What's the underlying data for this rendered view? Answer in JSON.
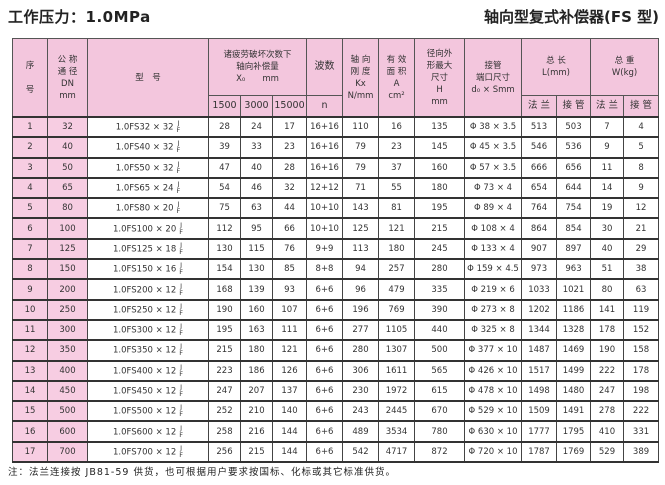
{
  "title_left": "工作压力：1.0MPa",
  "title_right": "轴向型复式补偿器(FS 型)",
  "header": {
    "seq": "序\n\n号",
    "dn": "公 称\n通 径\nDN\nmm",
    "model": "型　号",
    "comp": "诸疲劳破坏次数下\n轴向补偿量\nX₀　　mm",
    "comp_sub": [
      "1500",
      "3000",
      "15000"
    ],
    "waves": "波数",
    "waves_sub": "n",
    "stiff": "轴 向\n刚 度\nKx\nN/mm",
    "area": "有 效\n面 积\nA\ncm²",
    "outer": "径向外\n形最大\n尺寸\nH\nmm",
    "pipe": "接管\n端口尺寸\nd₀ × Smm",
    "length": "总 长\nL(mm)",
    "length_sub": [
      "法 兰",
      "接 管"
    ],
    "weight": "总 重\nW(kg)",
    "weight_sub": [
      "法 兰",
      "接 管"
    ]
  },
  "frac": {
    "top": "J",
    "bottom": "F"
  },
  "rows": [
    [
      "1",
      "32",
      "1.0FS32 × 32",
      "28",
      "24",
      "17",
      "16+16",
      "110",
      "16",
      "135",
      "Φ 38 × 3.5",
      "513",
      "503",
      "7",
      "4"
    ],
    [
      "2",
      "40",
      "1.0FS40 × 32",
      "39",
      "33",
      "23",
      "16+16",
      "79",
      "23",
      "145",
      "Φ 45 × 3.5",
      "546",
      "536",
      "9",
      "5"
    ],
    [
      "3",
      "50",
      "1.0FS50 × 32",
      "47",
      "40",
      "28",
      "16+16",
      "79",
      "37",
      "160",
      "Φ 57 × 3.5",
      "666",
      "656",
      "11",
      "8"
    ],
    [
      "4",
      "65",
      "1.0FS65 × 24",
      "54",
      "46",
      "32",
      "12+12",
      "71",
      "55",
      "180",
      "Φ 73 × 4",
      "654",
      "644",
      "14",
      "9"
    ],
    [
      "5",
      "80",
      "1.0FS80 × 20",
      "75",
      "63",
      "44",
      "10+10",
      "143",
      "81",
      "195",
      "Φ 89 × 4",
      "764",
      "754",
      "19",
      "12"
    ],
    [
      "6",
      "100",
      "1.0FS100 × 20",
      "112",
      "95",
      "66",
      "10+10",
      "125",
      "121",
      "215",
      "Φ 108 × 4",
      "864",
      "854",
      "30",
      "21"
    ],
    [
      "7",
      "125",
      "1.0FS125 × 18",
      "130",
      "115",
      "76",
      "9+9",
      "113",
      "180",
      "245",
      "Φ 133 × 4",
      "907",
      "897",
      "40",
      "29"
    ],
    [
      "8",
      "150",
      "1.0FS150 × 16",
      "154",
      "130",
      "85",
      "8+8",
      "94",
      "257",
      "280",
      "Φ 159 × 4.5",
      "973",
      "963",
      "51",
      "38"
    ],
    [
      "9",
      "200",
      "1.0FS200 × 12",
      "168",
      "139",
      "93",
      "6+6",
      "96",
      "479",
      "335",
      "Φ 219 × 6",
      "1033",
      "1021",
      "80",
      "63"
    ],
    [
      "10",
      "250",
      "1.0FS250 × 12",
      "190",
      "160",
      "107",
      "6+6",
      "196",
      "769",
      "390",
      "Φ 273 × 8",
      "1202",
      "1186",
      "141",
      "119"
    ],
    [
      "11",
      "300",
      "1.0FS300 × 12",
      "195",
      "163",
      "111",
      "6+6",
      "277",
      "1105",
      "440",
      "Φ 325 × 8",
      "1344",
      "1328",
      "178",
      "152"
    ],
    [
      "12",
      "350",
      "1.0FS350 × 12",
      "215",
      "180",
      "121",
      "6+6",
      "280",
      "1307",
      "500",
      "Φ 377 × 10",
      "1487",
      "1469",
      "190",
      "158"
    ],
    [
      "13",
      "400",
      "1.0FS400 × 12",
      "223",
      "186",
      "126",
      "6+6",
      "306",
      "1611",
      "565",
      "Φ 426 × 10",
      "1517",
      "1499",
      "222",
      "178"
    ],
    [
      "14",
      "450",
      "1.0FS450 × 12",
      "247",
      "207",
      "137",
      "6+6",
      "230",
      "1972",
      "615",
      "Φ 478 × 10",
      "1498",
      "1480",
      "247",
      "198"
    ],
    [
      "15",
      "500",
      "1.0FS500 × 12",
      "252",
      "210",
      "140",
      "6+6",
      "243",
      "2445",
      "670",
      "Φ 529 × 10",
      "1509",
      "1491",
      "278",
      "222"
    ],
    [
      "16",
      "600",
      "1.0FS600 × 12",
      "258",
      "216",
      "144",
      "6+6",
      "489",
      "3534",
      "780",
      "Φ 630 × 10",
      "1777",
      "1795",
      "410",
      "331"
    ],
    [
      "17",
      "700",
      "1.0FS700 × 12",
      "256",
      "215",
      "144",
      "6+6",
      "542",
      "4717",
      "872",
      "Φ 720 × 10",
      "1787",
      "1769",
      "529",
      "389"
    ]
  ],
  "note": "注：法兰连接按 JB81-59 供货，也可根据用户要求按国标、化标或其它标准供货。",
  "colors": {
    "header_pink": "#f3c6dd",
    "column_pink": "#f7cde2"
  }
}
